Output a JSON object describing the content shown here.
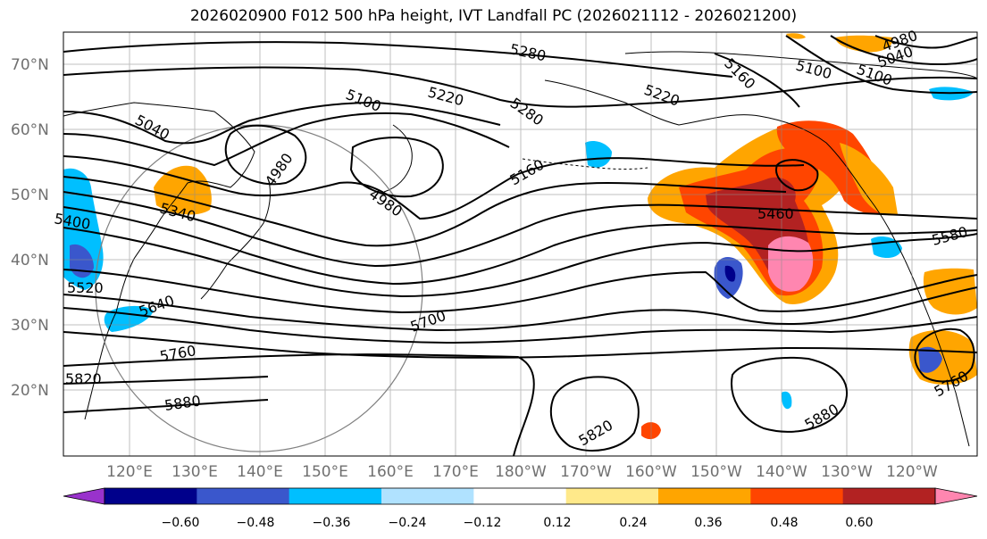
{
  "title": "2026020900 F012 500 hPa height, IVT Landfall PC (2026021112 - 2026021200)",
  "lat_labels": [
    "70°N",
    "60°N",
    "50°N",
    "40°N",
    "30°N",
    "20°N"
  ],
  "lon_labels": [
    "120°E",
    "130°E",
    "140°E",
    "150°E",
    "160°E",
    "170°E",
    "180°W",
    "170°W",
    "160°W",
    "150°W",
    "140°W",
    "130°W",
    "120°W"
  ],
  "contour_labels": [
    "5280",
    "5160",
    "5100",
    "4980",
    "5220",
    "5100",
    "5220",
    "5280",
    "5040",
    "5100",
    "4980",
    "5040",
    "4980",
    "5160",
    "5460",
    "5340",
    "5400",
    "5580",
    "5520",
    "5640",
    "5700",
    "5760",
    "5820",
    "5880",
    "5820",
    "5880",
    "5760"
  ],
  "colorbar": {
    "tick_labels": [
      "−0.60",
      "−0.48",
      "−0.36",
      "−0.24",
      "−0.12",
      "0.12",
      "0.24",
      "0.36",
      "0.48",
      "0.60"
    ],
    "colors": [
      "#9932cc",
      "#00008b",
      "#3a57cc",
      "#00bfff",
      "#b0e2ff",
      "#ffffff",
      "#ffe98a",
      "#ffa500",
      "#ff4500",
      "#b22222",
      "#ff86b0"
    ]
  }
}
